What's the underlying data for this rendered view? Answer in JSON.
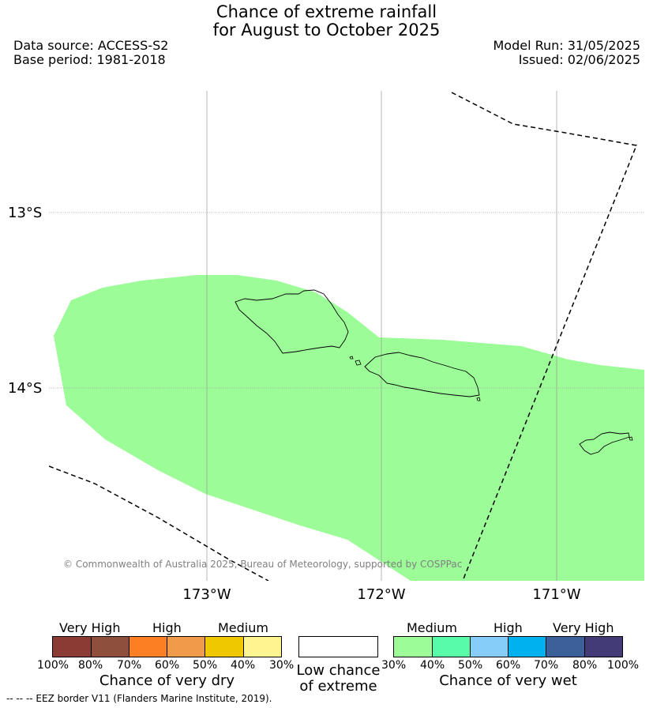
{
  "header": {
    "title_line1": "Chance of extreme rainfall",
    "title_line2": "for August to October 2025",
    "data_source": "Data source: ACCESS-S2",
    "base_period": "Base period: 1981-2018",
    "model_run": "Model Run: 31/05/2025",
    "issued": "Issued: 02/06/2025"
  },
  "map": {
    "lat_labels": [
      "13°S",
      "14°S"
    ],
    "lon_labels": [
      "173°W",
      "172°W",
      "171°W"
    ],
    "copyright": "© Commonwealth of Australia 2025, Bureau of Meteorology, supported by COSPPac",
    "shading_color": "#9cfc98",
    "region_category": "Medium chance of very wet"
  },
  "legend": {
    "dry": {
      "headers": [
        "Very High",
        "High",
        "Medium"
      ],
      "colors": [
        "#8b3a34",
        "#8f4f3d",
        "#fc8023",
        "#f09b4a",
        "#f0c800",
        "#fef590"
      ],
      "ticks": [
        "100%",
        "80%",
        "70%",
        "60%",
        "50%",
        "40%",
        "30%"
      ],
      "caption": "Chance of very dry"
    },
    "low": {
      "caption_line1": "Low chance",
      "caption_line2": "of extreme"
    },
    "wet": {
      "headers": [
        "Medium",
        "High",
        "Very High"
      ],
      "colors": [
        "#9cfc98",
        "#58fca8",
        "#87cdfa",
        "#00b1ef",
        "#3c619a",
        "#433a78"
      ],
      "ticks": [
        "30%",
        "40%",
        "50%",
        "60%",
        "70%",
        "80%",
        "100%"
      ],
      "caption": "Chance of very wet"
    }
  },
  "footer": {
    "eez_note": "-- -- -- EEZ border V11 (Flanders Marine Institute, 2019)."
  }
}
